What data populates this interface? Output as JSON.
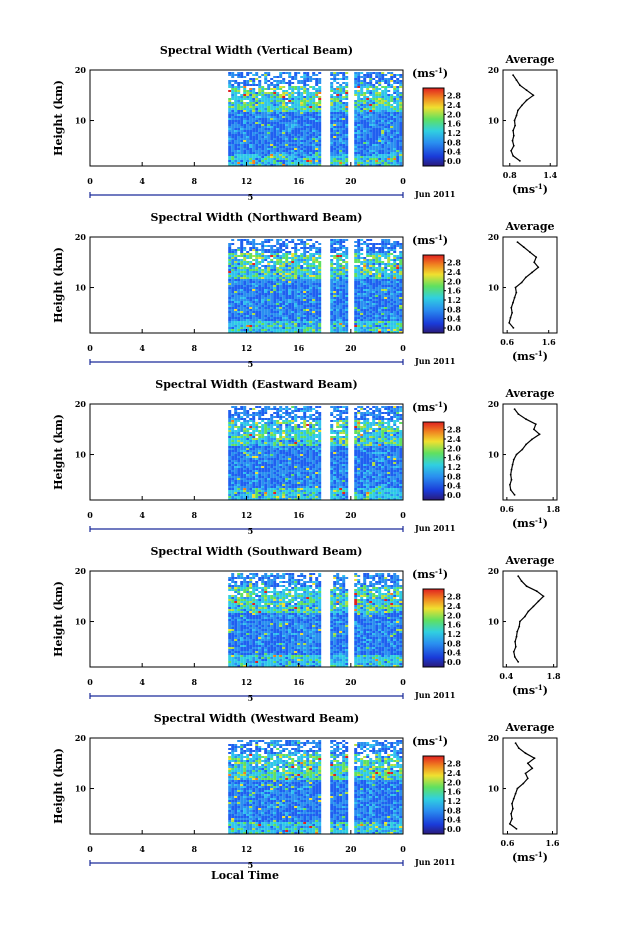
{
  "figure": {
    "xlabel": "Local Time",
    "date_label": "Jun 2011",
    "day_marker": "5",
    "colorbar_unit": "(ms",
    "colorbar_exp": "-1",
    "average_title": "Average",
    "average_unit": "(ms",
    "ylabel": "Height (km)"
  },
  "chart_data": [
    {
      "type": "heatmap",
      "title": "Spectral Width (Vertical Beam)",
      "xlabel": "Local Time",
      "ylabel": "Height (km)",
      "x_ticks": [
        "0",
        "4",
        "8",
        "12",
        "16",
        "20",
        "0"
      ],
      "y_ticks": [
        "10",
        "20"
      ],
      "xlim": [
        0,
        24
      ],
      "ylim": [
        1,
        20
      ],
      "data_start_hour": 10.6,
      "gaps_hours": [
        [
          17.6,
          18.2
        ],
        [
          19.6,
          20.2
        ]
      ],
      "colorbar": {
        "label": "ms-1",
        "ticks": [
          "0.0",
          "0.4",
          "0.8",
          "1.2",
          "1.6",
          "2.0",
          "2.4",
          "2.8"
        ],
        "range": [
          0,
          3.0
        ]
      },
      "average_profile": {
        "title": "Average",
        "x_ticks": [
          "0.8",
          "1.4"
        ],
        "xlim": [
          0.7,
          1.5
        ],
        "y_ticks": [
          "10",
          "20"
        ],
        "heights": [
          2,
          3,
          4,
          5,
          6,
          7,
          8,
          9,
          10,
          11,
          12,
          13,
          14,
          15,
          16,
          17,
          18,
          19
        ],
        "values": [
          0.95,
          0.85,
          0.82,
          0.86,
          0.84,
          0.86,
          0.85,
          0.88,
          0.87,
          0.9,
          0.92,
          0.98,
          1.05,
          1.15,
          1.05,
          0.95,
          0.9,
          0.85
        ]
      }
    },
    {
      "type": "heatmap",
      "title": "Spectral Width (Northward Beam)",
      "xlabel": "Local Time",
      "ylabel": "Height (km)",
      "x_ticks": [
        "0",
        "4",
        "8",
        "12",
        "16",
        "20",
        "0"
      ],
      "y_ticks": [
        "10",
        "20"
      ],
      "xlim": [
        0,
        24
      ],
      "ylim": [
        1,
        20
      ],
      "data_start_hour": 10.6,
      "gaps_hours": [
        [
          17.6,
          18.2
        ],
        [
          19.6,
          20.2
        ]
      ],
      "colorbar": {
        "label": "ms-1",
        "ticks": [
          "0.0",
          "0.4",
          "0.8",
          "1.2",
          "1.6",
          "2.0",
          "2.4",
          "2.8"
        ],
        "range": [
          0,
          3.0
        ]
      },
      "average_profile": {
        "title": "Average",
        "x_ticks": [
          "0.6",
          "1.6"
        ],
        "xlim": [
          0.5,
          1.8
        ],
        "y_ticks": [
          "10",
          "20"
        ],
        "heights": [
          2,
          3,
          4,
          5,
          6,
          7,
          8,
          9,
          10,
          11,
          12,
          13,
          14,
          15,
          16,
          17,
          18,
          19
        ],
        "values": [
          0.75,
          0.65,
          0.68,
          0.72,
          0.7,
          0.74,
          0.78,
          0.82,
          0.8,
          0.95,
          1.05,
          1.2,
          1.35,
          1.25,
          1.3,
          1.15,
          1.0,
          0.85
        ]
      }
    },
    {
      "type": "heatmap",
      "title": "Spectral Width (Eastward Beam)",
      "xlabel": "Local Time",
      "ylabel": "Height (km)",
      "x_ticks": [
        "0",
        "4",
        "8",
        "12",
        "16",
        "20",
        "0"
      ],
      "y_ticks": [
        "10",
        "20"
      ],
      "xlim": [
        0,
        24
      ],
      "ylim": [
        1,
        20
      ],
      "data_start_hour": 10.6,
      "gaps_hours": [
        [
          17.6,
          18.2
        ],
        [
          19.6,
          20.2
        ]
      ],
      "colorbar": {
        "label": "ms-1",
        "ticks": [
          "0.0",
          "0.4",
          "0.8",
          "1.2",
          "1.6",
          "2.0",
          "2.4",
          "2.8"
        ],
        "range": [
          0,
          3.0
        ]
      },
      "average_profile": {
        "title": "Average",
        "x_ticks": [
          "0.6",
          "1.8"
        ],
        "xlim": [
          0.5,
          1.9
        ],
        "y_ticks": [
          "10",
          "20"
        ],
        "heights": [
          2,
          3,
          4,
          5,
          6,
          7,
          8,
          9,
          10,
          11,
          12,
          13,
          14,
          15,
          16,
          17,
          18,
          19
        ],
        "values": [
          0.8,
          0.7,
          0.68,
          0.72,
          0.7,
          0.72,
          0.75,
          0.78,
          0.85,
          1.0,
          1.1,
          1.25,
          1.45,
          1.3,
          1.35,
          1.1,
          0.9,
          0.8
        ]
      }
    },
    {
      "type": "heatmap",
      "title": "Spectral Width (Southward Beam)",
      "xlabel": "Local Time",
      "ylabel": "Height (km)",
      "x_ticks": [
        "0",
        "4",
        "8",
        "12",
        "16",
        "20",
        "0"
      ],
      "y_ticks": [
        "10",
        "20"
      ],
      "xlim": [
        0,
        24
      ],
      "ylim": [
        1,
        20
      ],
      "data_start_hour": 10.6,
      "gaps_hours": [
        [
          17.6,
          18.2
        ],
        [
          19.6,
          20.2
        ]
      ],
      "colorbar": {
        "label": "ms-1",
        "ticks": [
          "0.0",
          "0.4",
          "0.8",
          "1.2",
          "1.6",
          "2.0",
          "2.4",
          "2.8"
        ],
        "range": [
          0,
          3.0
        ]
      },
      "average_profile": {
        "title": "Average",
        "x_ticks": [
          "0.4",
          "1.8"
        ],
        "xlim": [
          0.3,
          1.9
        ],
        "y_ticks": [
          "10",
          "20"
        ],
        "heights": [
          2,
          3,
          4,
          5,
          6,
          7,
          8,
          9,
          10,
          11,
          12,
          13,
          14,
          15,
          16,
          17,
          18,
          19
        ],
        "values": [
          0.75,
          0.65,
          0.62,
          0.68,
          0.66,
          0.7,
          0.72,
          0.78,
          0.8,
          0.95,
          1.05,
          1.2,
          1.35,
          1.5,
          1.3,
          1.0,
          0.85,
          0.75
        ]
      }
    },
    {
      "type": "heatmap",
      "title": "Spectral Width (Westward Beam)",
      "xlabel": "Local Time",
      "ylabel": "Height (km)",
      "x_ticks": [
        "0",
        "4",
        "8",
        "12",
        "16",
        "20",
        "0"
      ],
      "y_ticks": [
        "10",
        "20"
      ],
      "xlim": [
        0,
        24
      ],
      "ylim": [
        1,
        20
      ],
      "data_start_hour": 10.6,
      "gaps_hours": [
        [
          17.6,
          18.2
        ],
        [
          19.6,
          20.2
        ]
      ],
      "colorbar": {
        "label": "ms-1",
        "ticks": [
          "0.0",
          "0.4",
          "0.8",
          "1.2",
          "1.6",
          "2.0",
          "2.4",
          "2.8"
        ],
        "range": [
          0,
          3.0
        ]
      },
      "average_profile": {
        "title": "Average",
        "x_ticks": [
          "0.6",
          "1.6"
        ],
        "xlim": [
          0.5,
          1.7
        ],
        "y_ticks": [
          "10",
          "20"
        ],
        "heights": [
          2,
          3,
          4,
          5,
          6,
          7,
          8,
          9,
          10,
          11,
          12,
          13,
          14,
          15,
          16,
          17,
          18,
          19
        ],
        "values": [
          0.8,
          0.65,
          0.7,
          0.68,
          0.72,
          0.7,
          0.74,
          0.78,
          0.82,
          0.95,
          1.05,
          1.0,
          1.15,
          1.05,
          1.2,
          1.0,
          0.85,
          0.78
        ]
      }
    }
  ]
}
